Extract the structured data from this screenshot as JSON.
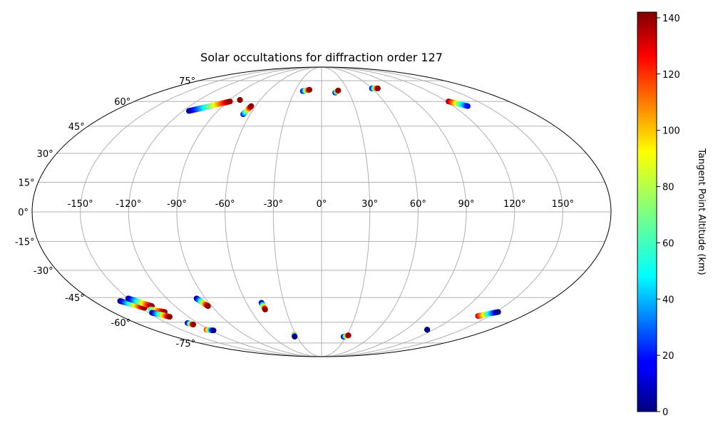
{
  "chart_data": {
    "type": "scatter",
    "projection": "mollweide",
    "title": "Solar occultations for diffraction order 127",
    "grid": true,
    "lon_ticks": [
      -150,
      -120,
      -90,
      -60,
      -30,
      0,
      30,
      60,
      90,
      120,
      150
    ],
    "lon_tick_labels": [
      "-150°",
      "-120°",
      "-90°",
      "-60°",
      "-30°",
      "0°",
      "30°",
      "60°",
      "90°",
      "120°",
      "150°"
    ],
    "lat_ticks": [
      75,
      60,
      45,
      30,
      15,
      0,
      -15,
      -30,
      -45,
      -60,
      -75
    ],
    "lat_tick_labels": [
      "75°",
      "60°",
      "45°",
      "30°",
      "15°",
      "0°",
      "-15°",
      "-30°",
      "-45°",
      "-60°",
      "-75°"
    ],
    "colorbar": {
      "label": "Tangent Point Altitude (km)",
      "colormap": "jet",
      "range": [
        0,
        142
      ],
      "ticks": [
        0,
        20,
        40,
        60,
        80,
        100,
        120,
        140
      ]
    },
    "tracks": [
      {
        "lon_start": -115,
        "lat_start": 54,
        "lon_end": -88,
        "lat_end": 60,
        "alt_start": 0,
        "alt_end": 140
      },
      {
        "lon_start": -80,
        "lat_start": 61,
        "lon_end": -80,
        "lat_end": 61,
        "alt_start": 130,
        "alt_end": 140
      },
      {
        "lon_start": -66,
        "lat_start": 52,
        "lon_end": -64,
        "lat_end": 57,
        "alt_start": 20,
        "alt_end": 140
      },
      {
        "lon_start": -21,
        "lat_start": 67,
        "lon_end": -14,
        "lat_end": 68,
        "alt_start": 10,
        "alt_end": 140
      },
      {
        "lon_start": 15,
        "lat_start": 66,
        "lon_end": 19,
        "lat_end": 67.5,
        "alt_start": 10,
        "alt_end": 140
      },
      {
        "lon_start": 60,
        "lat_start": 69,
        "lon_end": 67,
        "lat_end": 69,
        "alt_start": 10,
        "alt_end": 140
      },
      {
        "lon_start": 122,
        "lat_start": 60,
        "lon_end": 133,
        "lat_end": 57,
        "alt_start": 140,
        "alt_end": 20
      },
      {
        "lon_start": -159,
        "lat_start": -47,
        "lon_end": -147,
        "lat_end": -51,
        "alt_start": 0,
        "alt_end": 140
      },
      {
        "lon_start": -150,
        "lat_start": -45.5,
        "lon_end": -139,
        "lat_end": -50,
        "alt_start": 0,
        "alt_end": 140
      },
      {
        "lon_start": -144,
        "lat_start": -52,
        "lon_end": -135,
        "lat_end": -53.5,
        "alt_start": 60,
        "alt_end": 140
      },
      {
        "lon_start": -147,
        "lat_start": -54,
        "lon_end": -137,
        "lat_end": -56.5,
        "alt_start": 0,
        "alt_end": 140
      },
      {
        "lon_start": -97,
        "lat_start": -45.5,
        "lon_end": -93,
        "lat_end": -50,
        "alt_start": 0,
        "alt_end": 140
      },
      {
        "lon_start": -48,
        "lat_start": -48,
        "lon_end": -47.5,
        "lat_end": -52,
        "alt_start": 0,
        "alt_end": 140
      },
      {
        "lon_start": -130,
        "lat_start": -60.5,
        "lon_end": -127,
        "lat_end": -61.5,
        "alt_start": 0,
        "alt_end": 140
      },
      {
        "lon_start": -123,
        "lat_start": -65,
        "lon_end": -117,
        "lat_end": -65.5,
        "alt_start": 120,
        "alt_end": 0
      },
      {
        "lon_start": -32,
        "lat_start": -68.5,
        "lon_end": -33,
        "lat_end": -70,
        "alt_start": 100,
        "alt_end": 0
      },
      {
        "lon_start": 27,
        "lat_start": -70,
        "lon_end": 32,
        "lat_end": -69,
        "alt_start": 0,
        "alt_end": 140
      },
      {
        "lon_start": 113,
        "lat_start": -65,
        "lon_end": 113,
        "lat_end": -65,
        "alt_start": 0,
        "alt_end": 0
      },
      {
        "lon_start": 140,
        "lat_start": -56,
        "lon_end": 152,
        "lat_end": -53.5,
        "alt_start": 130,
        "alt_end": 0
      }
    ]
  }
}
